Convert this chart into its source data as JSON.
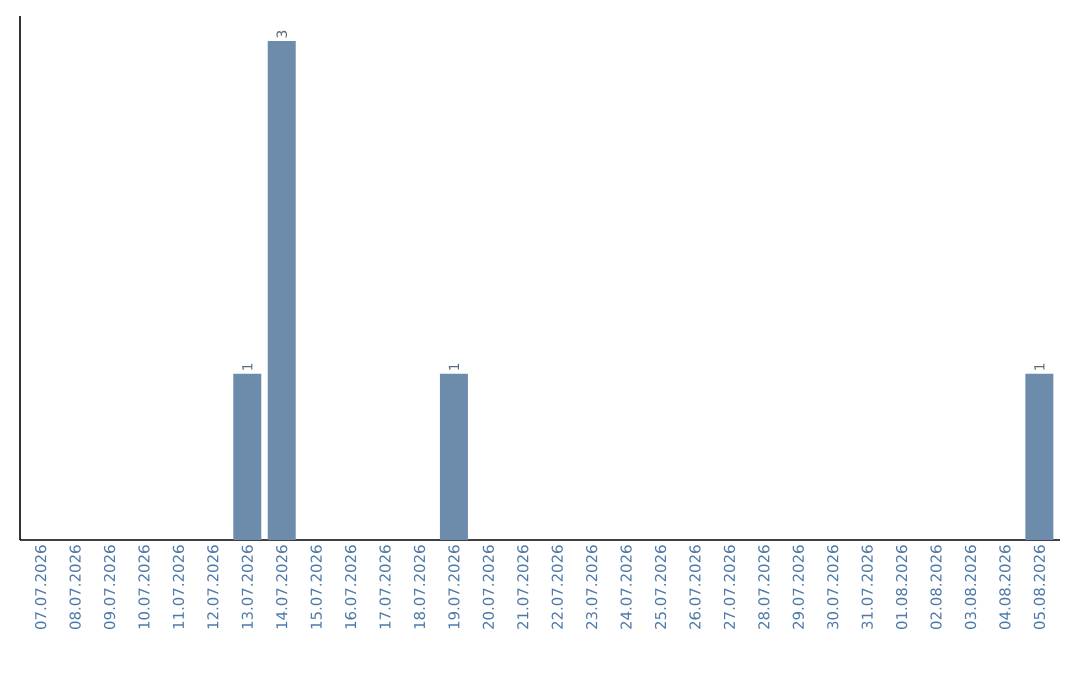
{
  "chart_data": {
    "type": "bar",
    "categories": [
      "07.07.2026",
      "08.07.2026",
      "09.07.2026",
      "10.07.2026",
      "11.07.2026",
      "12.07.2026",
      "13.07.2026",
      "14.07.2026",
      "15.07.2026",
      "16.07.2026",
      "17.07.2026",
      "18.07.2026",
      "19.07.2026",
      "20.07.2026",
      "21.07.2026",
      "22.07.2026",
      "23.07.2026",
      "24.07.2026",
      "25.07.2026",
      "26.07.2026",
      "27.07.2026",
      "28.07.2026",
      "29.07.2026",
      "30.07.2026",
      "31.07.2026",
      "01.08.2026",
      "02.08.2026",
      "03.08.2026",
      "04.08.2026",
      "05.08.2026"
    ],
    "values": [
      0,
      0,
      0,
      0,
      0,
      0,
      1,
      3,
      0,
      0,
      0,
      0,
      1,
      0,
      0,
      0,
      0,
      0,
      0,
      0,
      0,
      0,
      0,
      0,
      0,
      0,
      0,
      0,
      0,
      1
    ],
    "value_labels": [
      null,
      null,
      null,
      null,
      null,
      null,
      "1",
      "3",
      null,
      null,
      null,
      null,
      "1",
      null,
      null,
      null,
      null,
      null,
      null,
      null,
      null,
      null,
      null,
      null,
      null,
      null,
      null,
      null,
      null,
      "1"
    ],
    "color": "#6d8cab",
    "tick_labels": "x"
  }
}
